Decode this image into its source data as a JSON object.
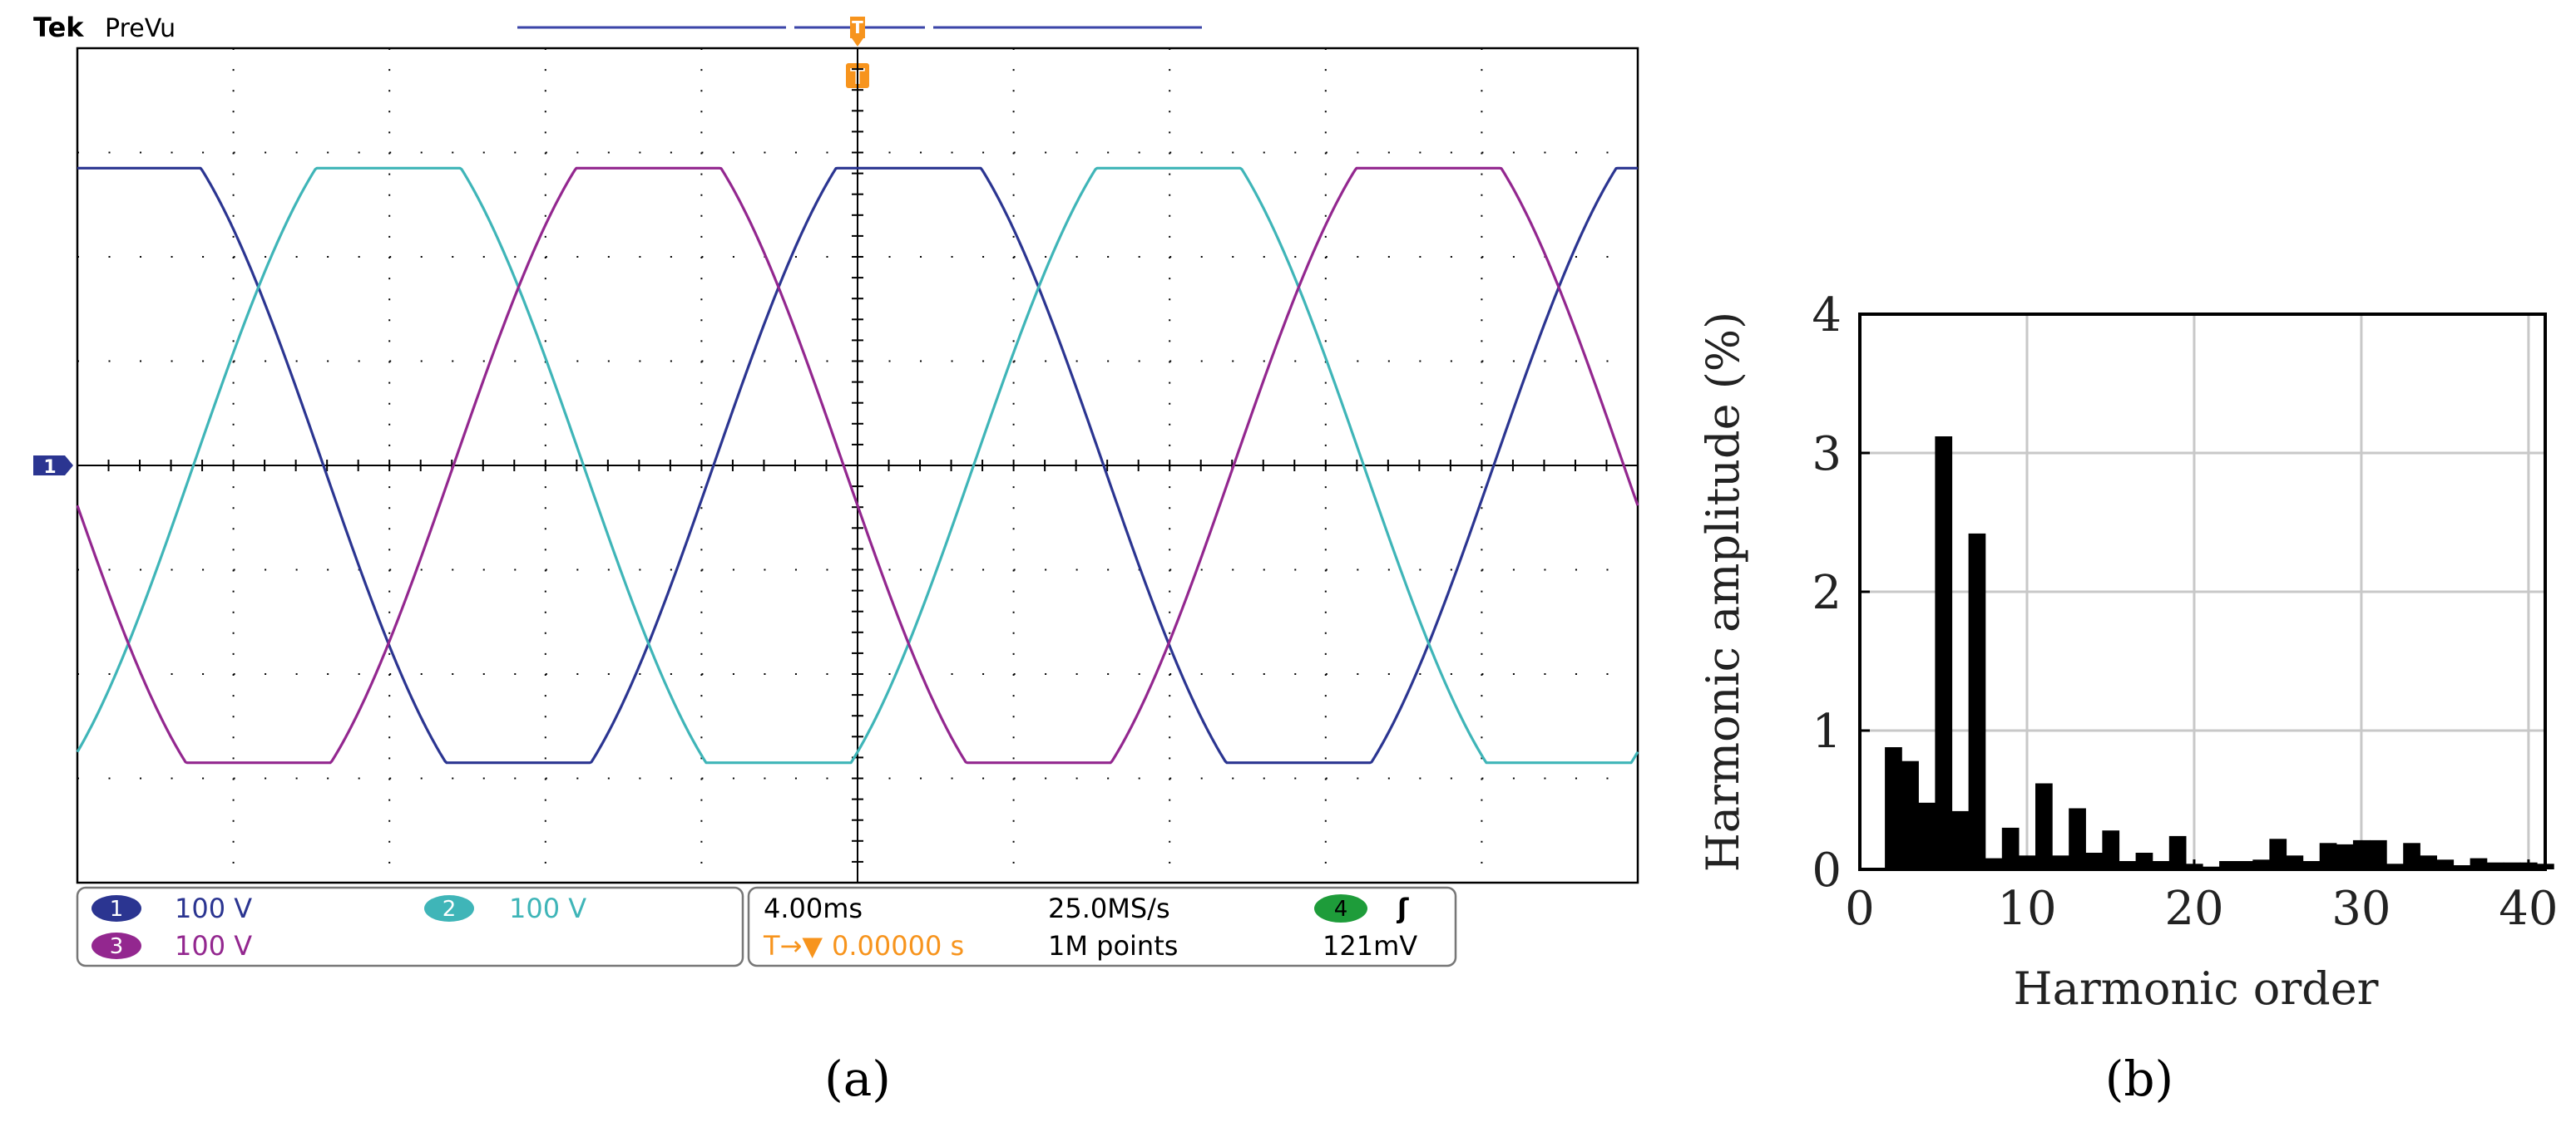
{
  "scope": {
    "brand": "Tek",
    "mode": "PreVu",
    "trigger_marker": "T",
    "level_marker": "1",
    "channels": [
      {
        "num": "1",
        "scale": "100 V",
        "color": "#2b3591",
        "badge_text_color": "#ffffff"
      },
      {
        "num": "2",
        "scale": "100 V",
        "color": "#3fb5b8",
        "badge_text_color": "#ffffff"
      },
      {
        "num": "3",
        "scale": "100 V",
        "color": "#93278f",
        "badge_text_color": "#ffffff"
      }
    ],
    "timebase": "4.00ms",
    "sample_rate": "25.0MS/s",
    "trigger_delay_symbol": "T→▼",
    "trigger_delay_value": "0.00000 s",
    "record_length": "1M points",
    "trigger_channel": "4",
    "trigger_slope": "ʃ",
    "trigger_level": "121mV",
    "colors": {
      "trigger": "#f7941d",
      "ch4": "#1e9c3a",
      "grid": "#000000",
      "bar": "#3b45a8"
    },
    "label": "(a)"
  },
  "chart_data": [
    {
      "type": "line",
      "title": "",
      "xlabel": "",
      "ylabel": "",
      "x_divisions": 10,
      "y_divisions": 8,
      "x_unit_per_div": "4.00ms",
      "y_unit_per_div": "100 V",
      "xlim": [
        -20,
        20
      ],
      "ylim": [
        -4,
        4
      ],
      "series": [
        {
          "name": "CH1",
          "color": "#2b3591",
          "amplitude_div": 2.87,
          "flat_top_div": 2.85,
          "period_ms": 20,
          "phase_deg": 0
        },
        {
          "name": "CH2",
          "color": "#3fb5b8",
          "amplitude_div": 2.87,
          "flat_top_div": 2.85,
          "period_ms": 20,
          "phase_deg": -120
        },
        {
          "name": "CH3",
          "color": "#93278f",
          "amplitude_div": 2.87,
          "flat_top_div": 2.85,
          "period_ms": 20,
          "phase_deg": 120
        }
      ]
    },
    {
      "type": "bar",
      "title": "",
      "xlabel": "Harmonic order",
      "ylabel": "Harmonic amplitude (%)",
      "xlim": [
        0,
        41
      ],
      "ylim": [
        0,
        4
      ],
      "xticks": [
        0,
        10,
        20,
        30,
        40
      ],
      "yticks": [
        0,
        1,
        2,
        3,
        4
      ],
      "grid": true,
      "categories": [
        2,
        3,
        4,
        5,
        6,
        7,
        8,
        9,
        10,
        11,
        12,
        13,
        14,
        15,
        16,
        17,
        18,
        19,
        20,
        21,
        22,
        23,
        24,
        25,
        26,
        27,
        28,
        29,
        30,
        31,
        32,
        33,
        34,
        35,
        36,
        37,
        38,
        39,
        40,
        41
      ],
      "values": [
        0.88,
        0.78,
        0.48,
        3.12,
        0.42,
        2.42,
        0.08,
        0.3,
        0.1,
        0.62,
        0.1,
        0.44,
        0.12,
        0.28,
        0.06,
        0.12,
        0.06,
        0.24,
        0.04,
        0.02,
        0.06,
        0.06,
        0.07,
        0.22,
        0.1,
        0.06,
        0.19,
        0.18,
        0.21,
        0.21,
        0.04,
        0.19,
        0.1,
        0.07,
        0.03,
        0.08,
        0.05,
        0.05,
        0.05,
        0.04
      ],
      "label": "(b)"
    }
  ]
}
